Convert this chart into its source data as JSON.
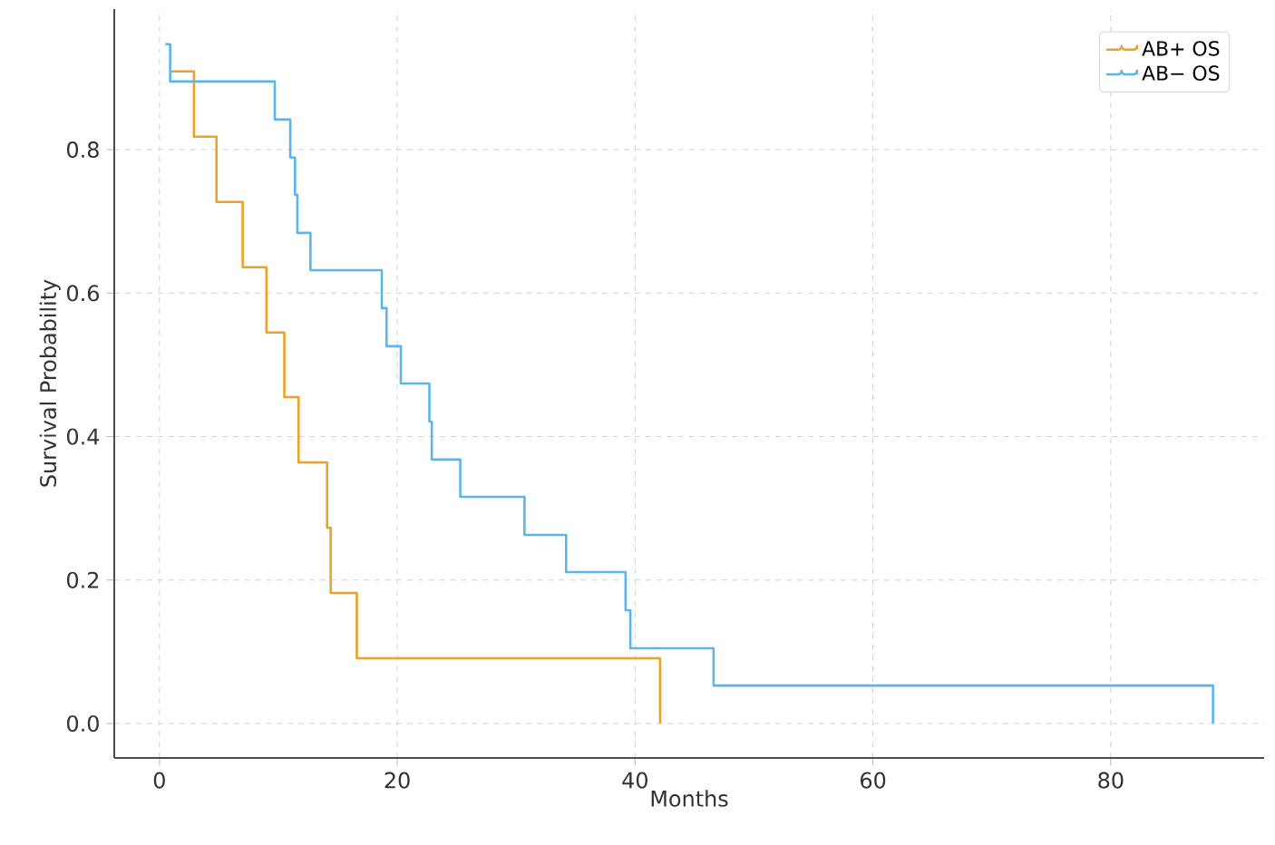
{
  "chart_data": {
    "type": "step",
    "xlabel": "Months",
    "ylabel": "Survival Probability",
    "xlim": [
      -3.8,
      92.9
    ],
    "ylim": [
      -0.048,
      0.996
    ],
    "xticks": [
      0,
      20,
      40,
      60,
      80
    ],
    "yticks": [
      {
        "value": 0,
        "label": "0.0"
      },
      {
        "value": 0.2,
        "label": "0.2"
      },
      {
        "value": 0.4,
        "label": "0.4"
      },
      {
        "value": 0.6,
        "label": "0.6"
      },
      {
        "value": 0.8,
        "label": "0.8"
      }
    ],
    "grid": true,
    "legend": "top right",
    "series": [
      {
        "name": "AB+ OS",
        "color": "#eba12a",
        "x": [
          0.9,
          2.9,
          4.8,
          7.0,
          9.0,
          10.5,
          11.7,
          14.1,
          14.4,
          16.6,
          42.1
        ],
        "values": [
          0.909,
          0.818,
          0.727,
          0.636,
          0.545,
          0.455,
          0.364,
          0.273,
          0.182,
          0.091,
          0
        ]
      },
      {
        "name": "AB− OS",
        "color": "#5bb5ea",
        "x": [
          0.5,
          0.9,
          9.7,
          11.0,
          11.4,
          11.6,
          12.7,
          18.7,
          19.1,
          20.3,
          22.7,
          22.9,
          25.3,
          30.7,
          34.2,
          39.2,
          39.6,
          46.6,
          88.6
        ],
        "values": [
          0.947,
          0.895,
          0.842,
          0.789,
          0.737,
          0.684,
          0.632,
          0.579,
          0.526,
          0.474,
          0.421,
          0.368,
          0.316,
          0.263,
          0.211,
          0.158,
          0.105,
          0.053,
          0
        ]
      }
    ]
  }
}
